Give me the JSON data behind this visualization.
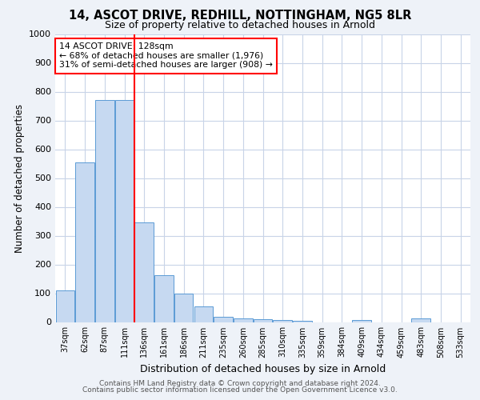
{
  "title1": "14, ASCOT DRIVE, REDHILL, NOTTINGHAM, NG5 8LR",
  "title2": "Size of property relative to detached houses in Arnold",
  "xlabel": "Distribution of detached houses by size in Arnold",
  "ylabel": "Number of detached properties",
  "bar_labels": [
    "37sqm",
    "62sqm",
    "87sqm",
    "111sqm",
    "136sqm",
    "161sqm",
    "186sqm",
    "211sqm",
    "235sqm",
    "260sqm",
    "285sqm",
    "310sqm",
    "335sqm",
    "359sqm",
    "384sqm",
    "409sqm",
    "434sqm",
    "459sqm",
    "483sqm",
    "508sqm",
    "533sqm"
  ],
  "bar_heights": [
    110,
    553,
    770,
    770,
    345,
    163,
    98,
    53,
    18,
    13,
    10,
    8,
    5,
    0,
    0,
    8,
    0,
    0,
    13,
    0,
    0
  ],
  "bar_color": "#c6d9f1",
  "bar_edge_color": "#5b9bd5",
  "red_line_index": 4,
  "annotation_text": "14 ASCOT DRIVE: 128sqm\n← 68% of detached houses are smaller (1,976)\n31% of semi-detached houses are larger (908) →",
  "annotation_box_color": "white",
  "annotation_box_edge": "red",
  "ylim": [
    0,
    1000
  ],
  "yticks": [
    0,
    100,
    200,
    300,
    400,
    500,
    600,
    700,
    800,
    900,
    1000
  ],
  "footer1": "Contains HM Land Registry data © Crown copyright and database right 2024.",
  "footer2": "Contains public sector information licensed under the Open Government Licence v3.0.",
  "bg_color": "#eef2f8",
  "plot_bg_color": "white",
  "grid_color": "#c8d4e8"
}
